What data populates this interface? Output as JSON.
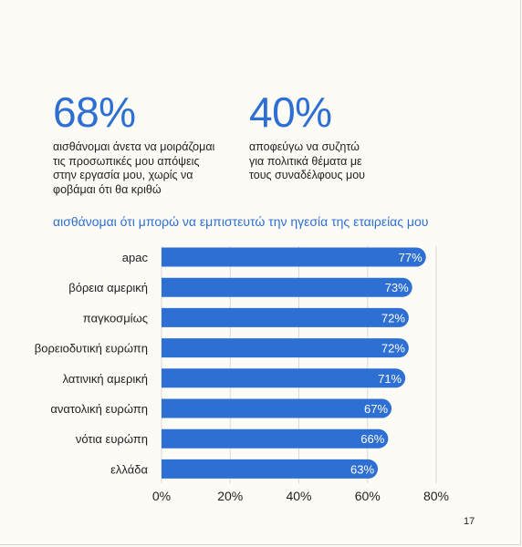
{
  "stats": [
    {
      "value": "68%",
      "description": "αισθάνομαι άνετα να μοιράζομαι\nτις προσωπικές μου απόψεις\nστην εργασία μου, χωρίς να\nφοβάμαι ότι θα κριθώ"
    },
    {
      "value": "40%",
      "description": "αποφεύγω να συζητώ\nγια πολιτικά θέματα με\nτους συναδέλφους μου"
    }
  ],
  "chart_data": {
    "type": "bar",
    "orientation": "horizontal",
    "title": "αισθάνομαι ότι μπορώ να εμπιστευτώ την ηγεσία της εταιρείας μου",
    "categories": [
      "apac",
      "βόρεια αμερική",
      "παγκοσμίως",
      "βορειοδυτική ευρώπη",
      "λατινική αμερική",
      "ανατολική ευρώπη",
      "νότια ευρώπη",
      "ελλάδα"
    ],
    "values": [
      77,
      73,
      72,
      72,
      71,
      67,
      66,
      63
    ],
    "data_labels": [
      "77%",
      "73%",
      "72%",
      "72%",
      "71%",
      "67%",
      "66%",
      "63%"
    ],
    "xlim": [
      0,
      80
    ],
    "xticks": [
      0,
      20,
      40,
      60,
      80
    ],
    "xtick_labels": [
      "0%",
      "20%",
      "40%",
      "60%",
      "80%"
    ],
    "grid": true,
    "bar_color": "#2d6fd3",
    "grid_color": "#d9d9d9"
  },
  "page_number": "17",
  "colors": {
    "accent": "#2d6fd3",
    "background": "#fdfbf6"
  }
}
